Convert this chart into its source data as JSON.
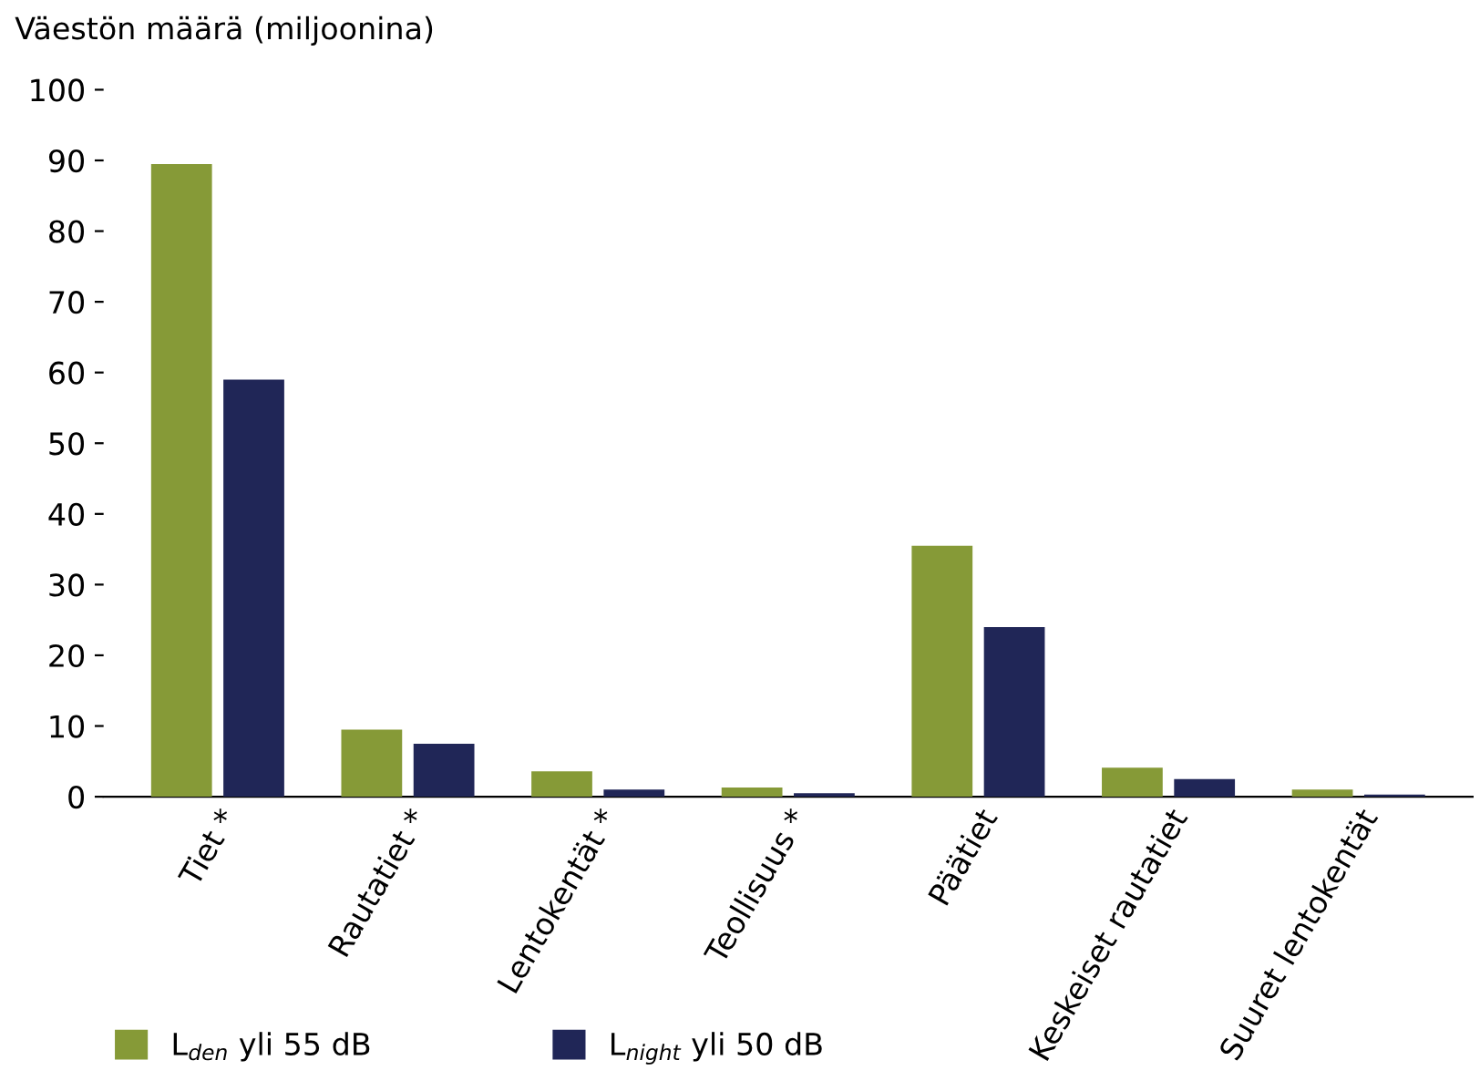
{
  "chart_data": {
    "type": "bar",
    "ylabel": "Väestön määrä (miljoonina)",
    "categories": [
      "Tiet *",
      "Rautatiet *",
      "Lentokentät *",
      "Teollisuus *",
      "Päätiet",
      "Keskeiset rautatiet",
      "Suuret lentokentät"
    ],
    "series": [
      {
        "name": "L$_{den}$ yli 55 dB",
        "color": "#869a37",
        "values": [
          89.5,
          9.5,
          3.6,
          1.3,
          35.5,
          4.1,
          1.0
        ]
      },
      {
        "name": "L$_{night}$ yli 50 dB",
        "color": "#202657",
        "values": [
          59,
          7.5,
          1.0,
          0.5,
          24,
          2.5,
          0.3
        ]
      }
    ],
    "ylim": [
      0,
      100
    ],
    "yticks": [
      0,
      10,
      20,
      30,
      40,
      50,
      60,
      70,
      80,
      90,
      100
    ],
    "grid": false,
    "legend": "bottom"
  }
}
